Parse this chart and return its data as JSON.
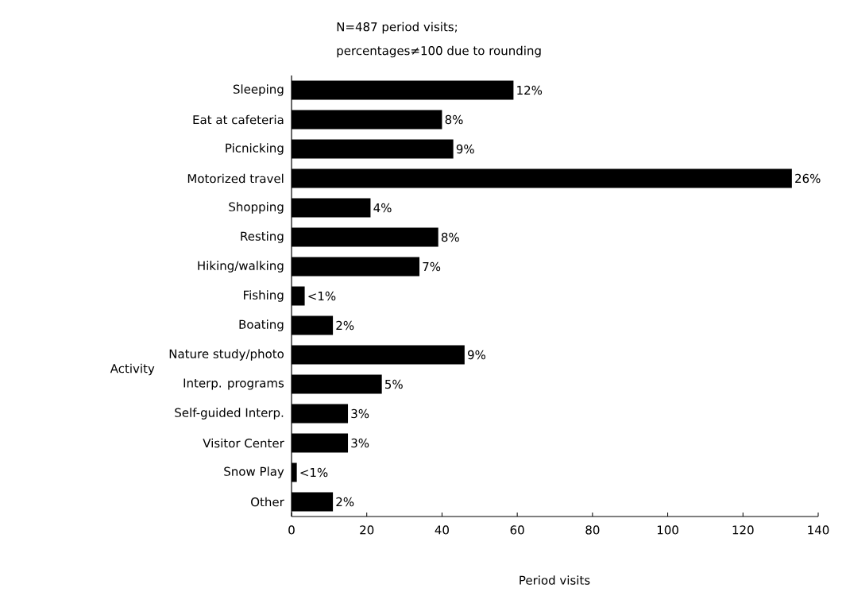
{
  "chart_data": {
    "type": "bar",
    "orientation": "horizontal",
    "title": "N=487 period visits;",
    "subtitle": "percentages≠100 due to rounding",
    "xlabel": "Period visits",
    "ylabel": "Activity",
    "categories": [
      "Sleeping",
      "Eat at cafeteria",
      "Picnicking",
      "Motorized travel",
      "Shopping",
      "Resting",
      "Hiking/walking",
      "Fishing",
      "Boating",
      "Nature study/photo",
      "Interp. programs",
      "Self-guided Interp.",
      "Visitor Center",
      "Snow Play",
      "Other"
    ],
    "values": [
      59,
      40,
      43,
      133,
      21,
      39,
      34,
      3.5,
      11,
      46,
      24,
      15,
      15,
      1.4,
      11
    ],
    "annotations": [
      {
        "text": "12%",
        "x": 59,
        "y": "Sleeping"
      },
      {
        "text": "8%",
        "x": 40,
        "y": "Eat at cafeteria"
      },
      {
        "text": "9%",
        "x": 43,
        "y": "Picnicking"
      },
      {
        "text": "26%",
        "x": 133,
        "y": "Motorized travel"
      },
      {
        "text": "4%",
        "x": 21,
        "y": "Shopping"
      },
      {
        "text": "8%",
        "x": 39,
        "y": "Resting"
      },
      {
        "text": "7%",
        "x": 34,
        "y": "Hiking/walking"
      },
      {
        "text": "<1%",
        "x": 3.5,
        "y": "Fishing"
      },
      {
        "text": "2%",
        "x": 11,
        "y": "Boating"
      },
      {
        "text": "9%",
        "x": 46,
        "y": "Nature study/photo"
      },
      {
        "text": "5%",
        "x": 24,
        "y": "Interp. programs"
      },
      {
        "text": "3%",
        "x": 15,
        "y": "Self-guided Interp."
      },
      {
        "text": "3%",
        "x": 15,
        "y": "Visitor Center"
      },
      {
        "text": "<1%",
        "x": 1.4,
        "y": "Snow Play"
      },
      {
        "text": "2%",
        "x": 11,
        "y": "Other"
      }
    ],
    "color": "#000000",
    "xlim": [
      0,
      140
    ],
    "xticks": [
      0,
      20,
      40,
      60,
      80,
      100,
      120,
      140
    ]
  }
}
